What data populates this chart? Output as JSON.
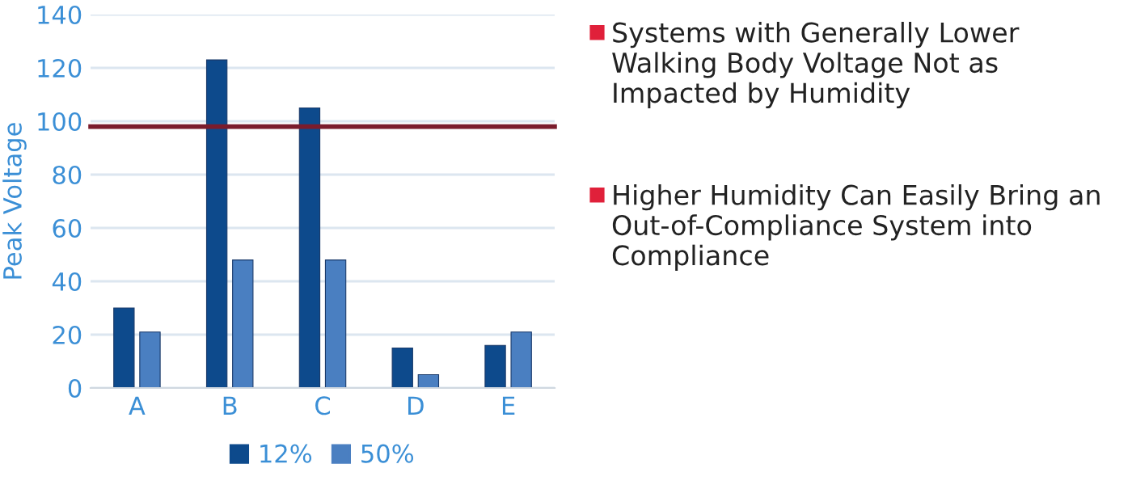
{
  "chart_data": {
    "type": "bar",
    "ylabel": "Peak Voltage",
    "categories": [
      "A",
      "B",
      "C",
      "D",
      "E"
    ],
    "series": [
      {
        "name": "12%",
        "color": "#0d4a8c",
        "values": [
          30,
          123,
          105,
          15,
          16
        ]
      },
      {
        "name": "50%",
        "color": "#4a7fc1",
        "values": [
          21,
          48,
          48,
          5,
          21
        ]
      }
    ],
    "ylim": [
      0,
      140
    ],
    "yticks": [
      0,
      20,
      40,
      60,
      80,
      100,
      120,
      140
    ],
    "grid": "y",
    "legend": "bottom",
    "ref_lines": [
      {
        "axis": "y",
        "value": 98,
        "color": "#7b1c2c"
      }
    ],
    "annotations": [
      "Systems with Generally Lower Walking Body Voltage Not as Impacted by Humidity",
      "Higher Humidity Can Easily Bring an Out-of-Compliance System into Compliance"
    ]
  }
}
